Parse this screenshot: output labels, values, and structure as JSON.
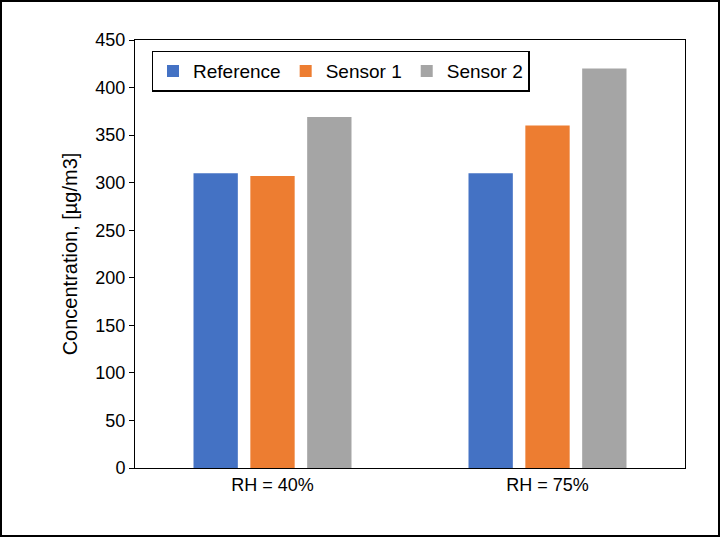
{
  "chart_data": {
    "type": "bar",
    "y_label": "Concentration, [µg/m3]",
    "categories": [
      "RH = 40%",
      "RH = 75%"
    ],
    "series": [
      {
        "name": "Reference",
        "color": "#4472c4",
        "values": [
          310,
          310
        ]
      },
      {
        "name": "Sensor 1",
        "color": "#ed7d31",
        "values": [
          307,
          360
        ]
      },
      {
        "name": "Sensor 2",
        "color": "#a5a5a5",
        "values": [
          369,
          420
        ]
      }
    ],
    "ylim": [
      0,
      450
    ],
    "yticks": [
      0,
      50,
      100,
      150,
      200,
      250,
      300,
      350,
      400,
      450
    ],
    "grid": false,
    "legend": "top"
  }
}
